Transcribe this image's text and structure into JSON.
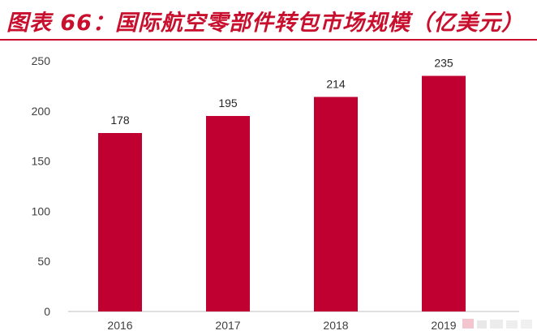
{
  "header": {
    "title": "图表 66：国际航空零部件转包市场规模（亿美元）"
  },
  "colors": {
    "accent": "#c8102e",
    "bar": "#c00030",
    "axis": "#bfbfbf",
    "text": "#404040"
  },
  "chart_data": {
    "type": "bar",
    "title": "",
    "xlabel": "",
    "ylabel": "",
    "categories": [
      "2016",
      "2017",
      "2018",
      "2019"
    ],
    "values": [
      178,
      195,
      214,
      235
    ],
    "data_labels": [
      "178",
      "195",
      "214",
      "235"
    ],
    "ylim": [
      0,
      250
    ],
    "yticks": [
      0,
      50,
      100,
      150,
      200,
      250
    ],
    "grid": false,
    "legend": "none"
  }
}
